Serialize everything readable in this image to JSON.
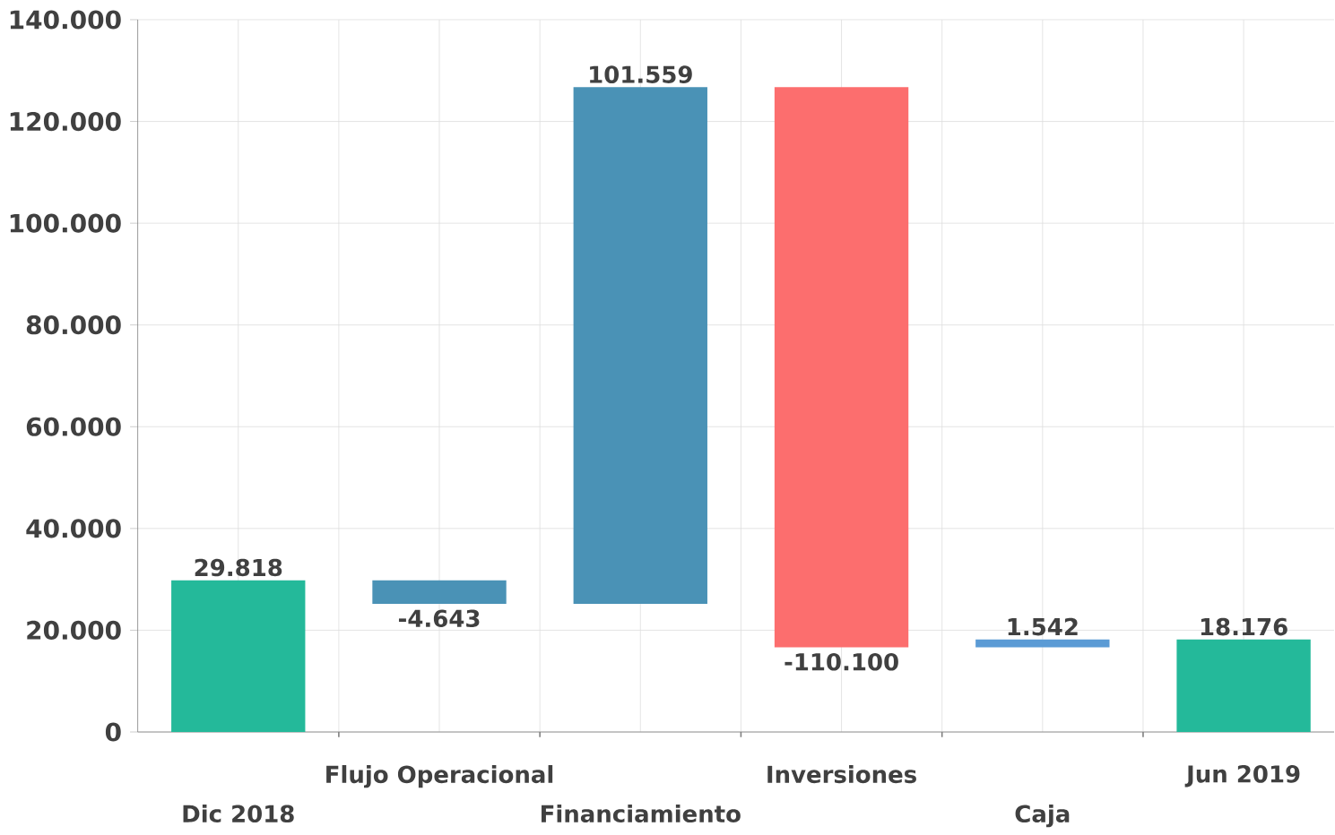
{
  "chart_data": {
    "type": "bar",
    "categories": [
      "Dic 2018",
      "Flujo Operacional",
      "Financiamiento",
      "Inversiones",
      "Caja",
      "Jun 2019"
    ],
    "values": [
      29818,
      -4643,
      101559,
      -110100,
      1542,
      18176
    ],
    "base": [
      0,
      29818,
      25175,
      126734,
      16634,
      0
    ],
    "colors": [
      "#24b99a",
      "#4a92b6",
      "#4a92b6",
      "#fc6e6e",
      "#5b9bd5",
      "#24b99a"
    ],
    "value_labels": [
      "29.818",
      "-4.643",
      "101.559",
      "-110.100",
      "1.542",
      "18.176"
    ],
    "ylim": [
      0,
      140000
    ],
    "yticks": [
      0,
      {
        "value": 20000,
        "label": "20.000"
      },
      {
        "value": 40000,
        "label": "40.000"
      },
      {
        "value": 60000,
        "label": "60.000"
      },
      {
        "value": 80000,
        "label": "80.000"
      },
      {
        "value": 100000,
        "label": "100.000"
      },
      {
        "value": 120000,
        "label": "120.000"
      },
      {
        "value": 140000,
        "label": "140.000"
      }
    ],
    "grid": true
  }
}
